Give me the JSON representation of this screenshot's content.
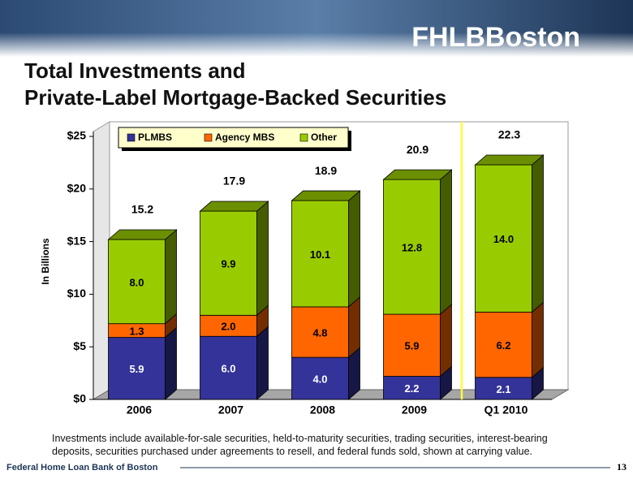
{
  "page": {
    "logo": "FHLBBoston",
    "footnote": "Investments include available-for-sale securities, held-to-maturity securities, trading securities, interest-bearing deposits, securities purchased under agreements to resell, and federal funds sold, shown at carrying value.",
    "footer": "Federal Home Loan Bank of Boston",
    "page_number": "13"
  },
  "chart_data": {
    "type": "stacked-bar-3d",
    "title": [
      "Total Investments and",
      "Private-Label Mortgage-Backed Securities"
    ],
    "y_label": "In Billions",
    "categories": [
      "2006",
      "2007",
      "2008",
      "2009",
      "Q1 2010"
    ],
    "series": [
      {
        "name": "PLMBS",
        "color": "#333399",
        "values": [
          5.9,
          6.0,
          4.0,
          2.2,
          2.1
        ],
        "value_labels": [
          "5.9",
          "6.0",
          "4.0",
          "2.2",
          "2.1"
        ]
      },
      {
        "name": "Agency MBS",
        "color": "#ff6600",
        "values": [
          1.3,
          2.0,
          4.8,
          5.9,
          6.2
        ],
        "value_labels": [
          "1.3",
          "2.0",
          "4.8",
          "5.9",
          "6.2"
        ]
      },
      {
        "name": "Other",
        "color": "#99cc00",
        "values": [
          8.0,
          9.9,
          10.1,
          12.8,
          14.0
        ],
        "value_labels": [
          "8.0",
          "9.9",
          "10.1",
          "12.8",
          "14.0"
        ]
      }
    ],
    "totals": [
      15.2,
      17.9,
      18.9,
      20.9,
      22.3
    ],
    "ylim": [
      0,
      25
    ],
    "yticks": [
      {
        "value": 0,
        "label": "$0"
      },
      {
        "value": 5,
        "label": "$5"
      },
      {
        "value": 10,
        "label": "$10"
      },
      {
        "value": 15,
        "label": "$15"
      },
      {
        "value": 20,
        "label": "$20"
      },
      {
        "value": 25,
        "label": "$25"
      }
    ],
    "legend": "top-left"
  }
}
